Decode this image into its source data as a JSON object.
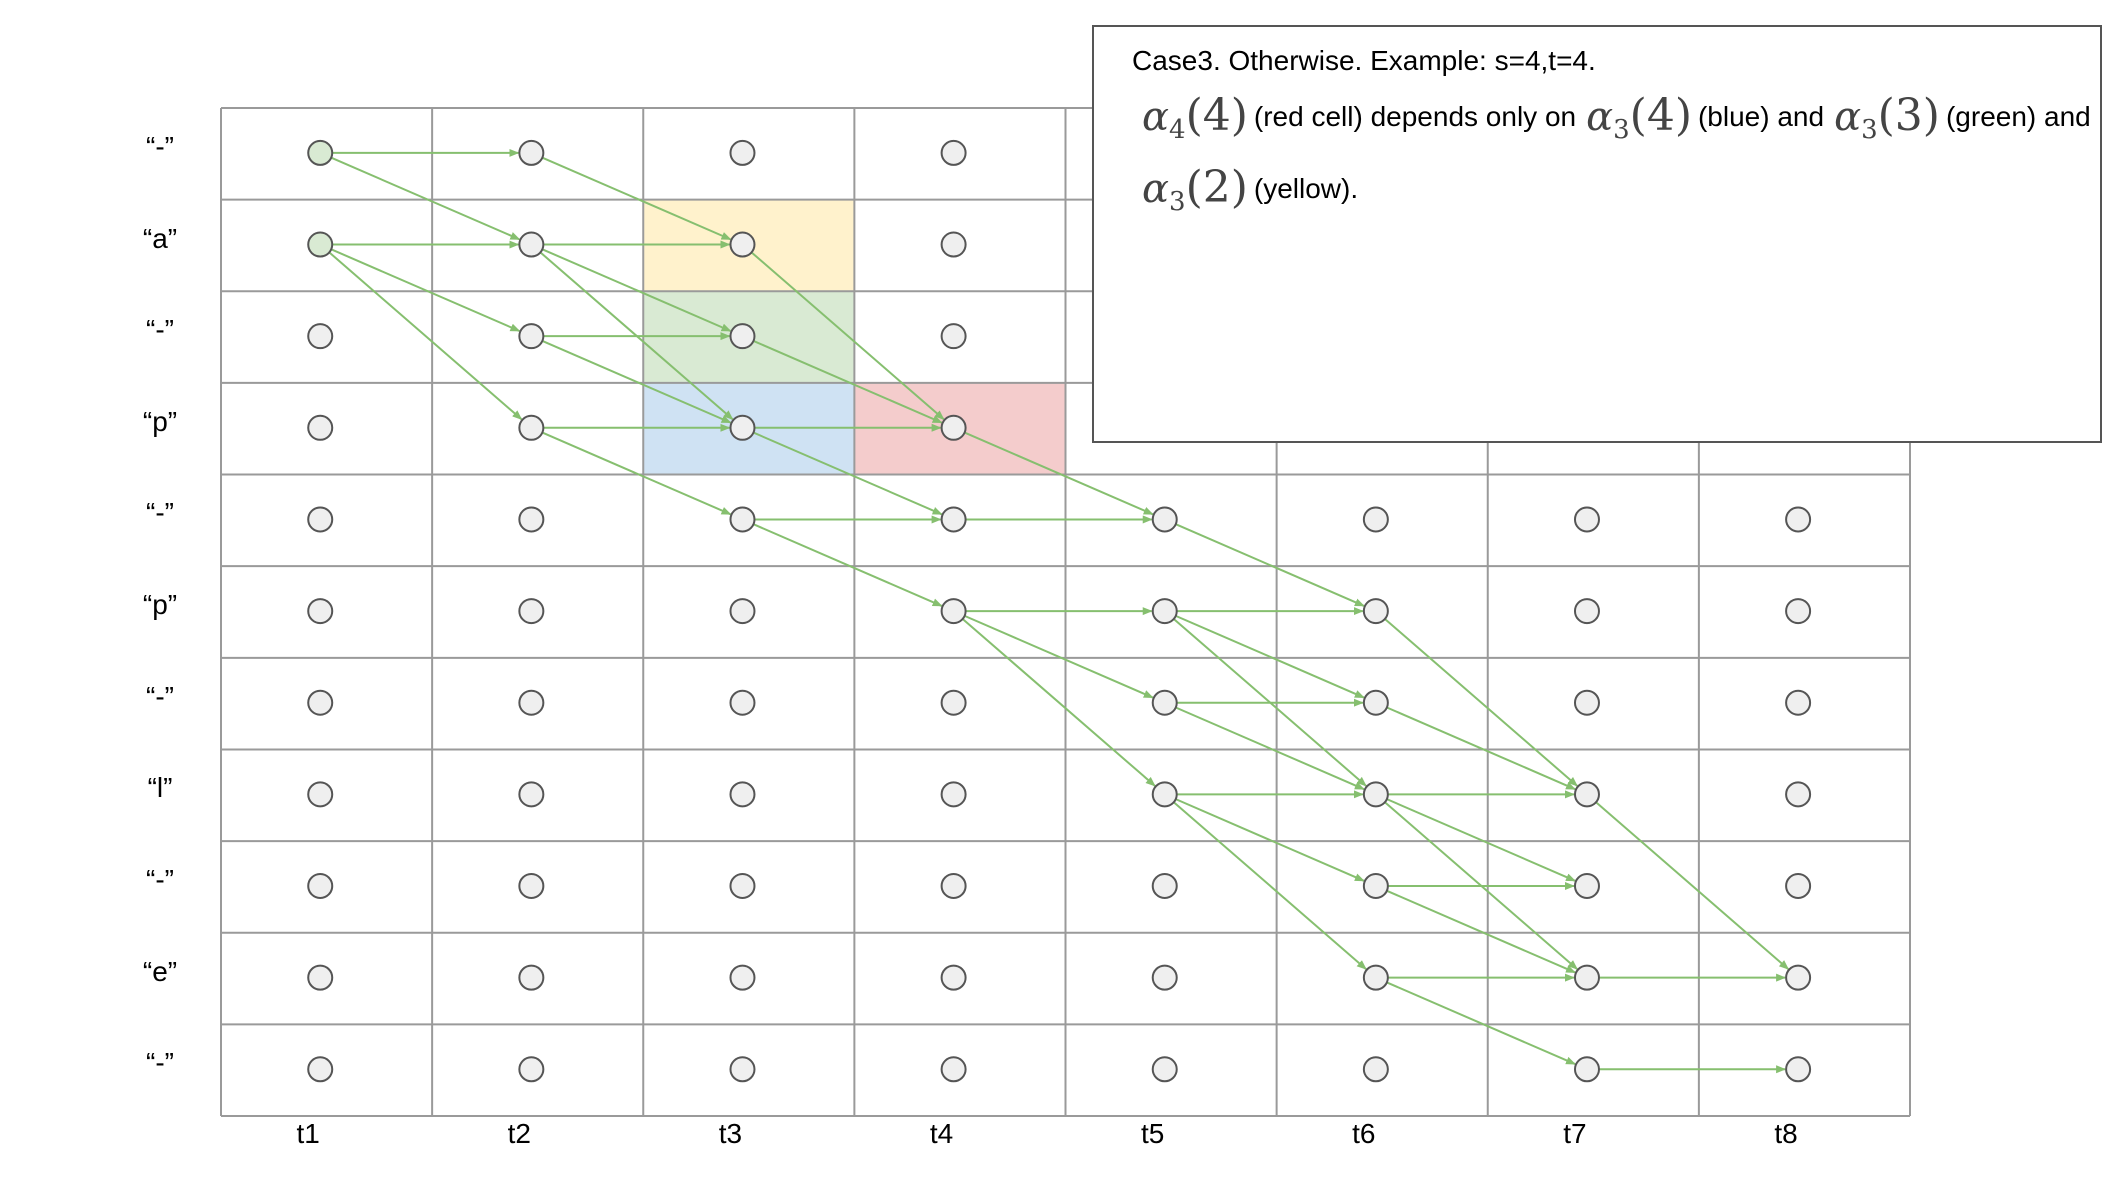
{
  "rows": [
    "“-”",
    "“a”",
    "“-”",
    "“p”",
    "“-”",
    "“p”",
    "“-”",
    "“l”",
    "“-”",
    "“e”",
    "“-”"
  ],
  "columns": [
    "t1",
    "t2",
    "t3",
    "t4",
    "t5",
    "t6",
    "t7",
    "t8"
  ],
  "colors": {
    "grid": "#9a9a9a",
    "node_fill": "#efefef",
    "node_stroke": "#555555",
    "node_start_fill": "#d9ead3",
    "arrow": "#86bf6f",
    "yellow": "#fff2cc",
    "green": "#d9ead3",
    "blue": "#cfe2f3",
    "red": "#f4cccc"
  },
  "highlights": [
    {
      "row": 1,
      "col": 2,
      "color": "yellow"
    },
    {
      "row": 2,
      "col": 2,
      "color": "green"
    },
    {
      "row": 3,
      "col": 2,
      "color": "blue"
    },
    {
      "row": 3,
      "col": 3,
      "color": "red"
    }
  ],
  "start_nodes": [
    [
      0,
      0
    ],
    [
      1,
      0
    ]
  ],
  "edges": [
    [
      0,
      0,
      0,
      1
    ],
    [
      0,
      0,
      1,
      1
    ],
    [
      1,
      0,
      1,
      1
    ],
    [
      1,
      0,
      2,
      1
    ],
    [
      1,
      0,
      3,
      1
    ],
    [
      0,
      1,
      1,
      2
    ],
    [
      1,
      1,
      1,
      2
    ],
    [
      1,
      1,
      2,
      2
    ],
    [
      1,
      1,
      3,
      2
    ],
    [
      2,
      1,
      2,
      2
    ],
    [
      2,
      1,
      3,
      2
    ],
    [
      3,
      1,
      3,
      2
    ],
    [
      3,
      1,
      4,
      2
    ],
    [
      1,
      2,
      3,
      3
    ],
    [
      2,
      2,
      3,
      3
    ],
    [
      3,
      2,
      3,
      3
    ],
    [
      3,
      2,
      4,
      3
    ],
    [
      4,
      2,
      4,
      3
    ],
    [
      4,
      2,
      5,
      3
    ],
    [
      3,
      3,
      4,
      4
    ],
    [
      4,
      3,
      4,
      4
    ],
    [
      5,
      3,
      5,
      4
    ],
    [
      5,
      3,
      6,
      4
    ],
    [
      5,
      3,
      7,
      4
    ],
    [
      4,
      4,
      5,
      5
    ],
    [
      5,
      4,
      5,
      5
    ],
    [
      5,
      4,
      6,
      5
    ],
    [
      5,
      4,
      7,
      5
    ],
    [
      6,
      4,
      6,
      5
    ],
    [
      6,
      4,
      7,
      5
    ],
    [
      7,
      4,
      7,
      5
    ],
    [
      7,
      4,
      8,
      5
    ],
    [
      7,
      4,
      9,
      5
    ],
    [
      5,
      5,
      7,
      6
    ],
    [
      6,
      5,
      7,
      6
    ],
    [
      7,
      5,
      7,
      6
    ],
    [
      7,
      5,
      8,
      6
    ],
    [
      7,
      5,
      9,
      6
    ],
    [
      8,
      5,
      8,
      6
    ],
    [
      8,
      5,
      9,
      6
    ],
    [
      9,
      5,
      9,
      6
    ],
    [
      9,
      5,
      10,
      6
    ],
    [
      7,
      6,
      9,
      7
    ],
    [
      9,
      6,
      9,
      7
    ],
    [
      10,
      6,
      10,
      7
    ]
  ],
  "note": {
    "line1": "Case3. Otherwise. Example: s=4,t=4.",
    "alpha_a": {
      "sym": "α",
      "sub": "4",
      "arg": "(4)"
    },
    "text_a": "(red cell) depends only on",
    "alpha_b": {
      "sym": "α",
      "sub": "3",
      "arg": "(4)"
    },
    "text_b": "(blue) and",
    "alpha_c": {
      "sym": "α",
      "sub": "3",
      "arg": "(3)"
    },
    "text_c": "(green) and",
    "alpha_d": {
      "sym": "α",
      "sub": "3",
      "arg": "(2)"
    },
    "text_d": "(yellow)."
  }
}
